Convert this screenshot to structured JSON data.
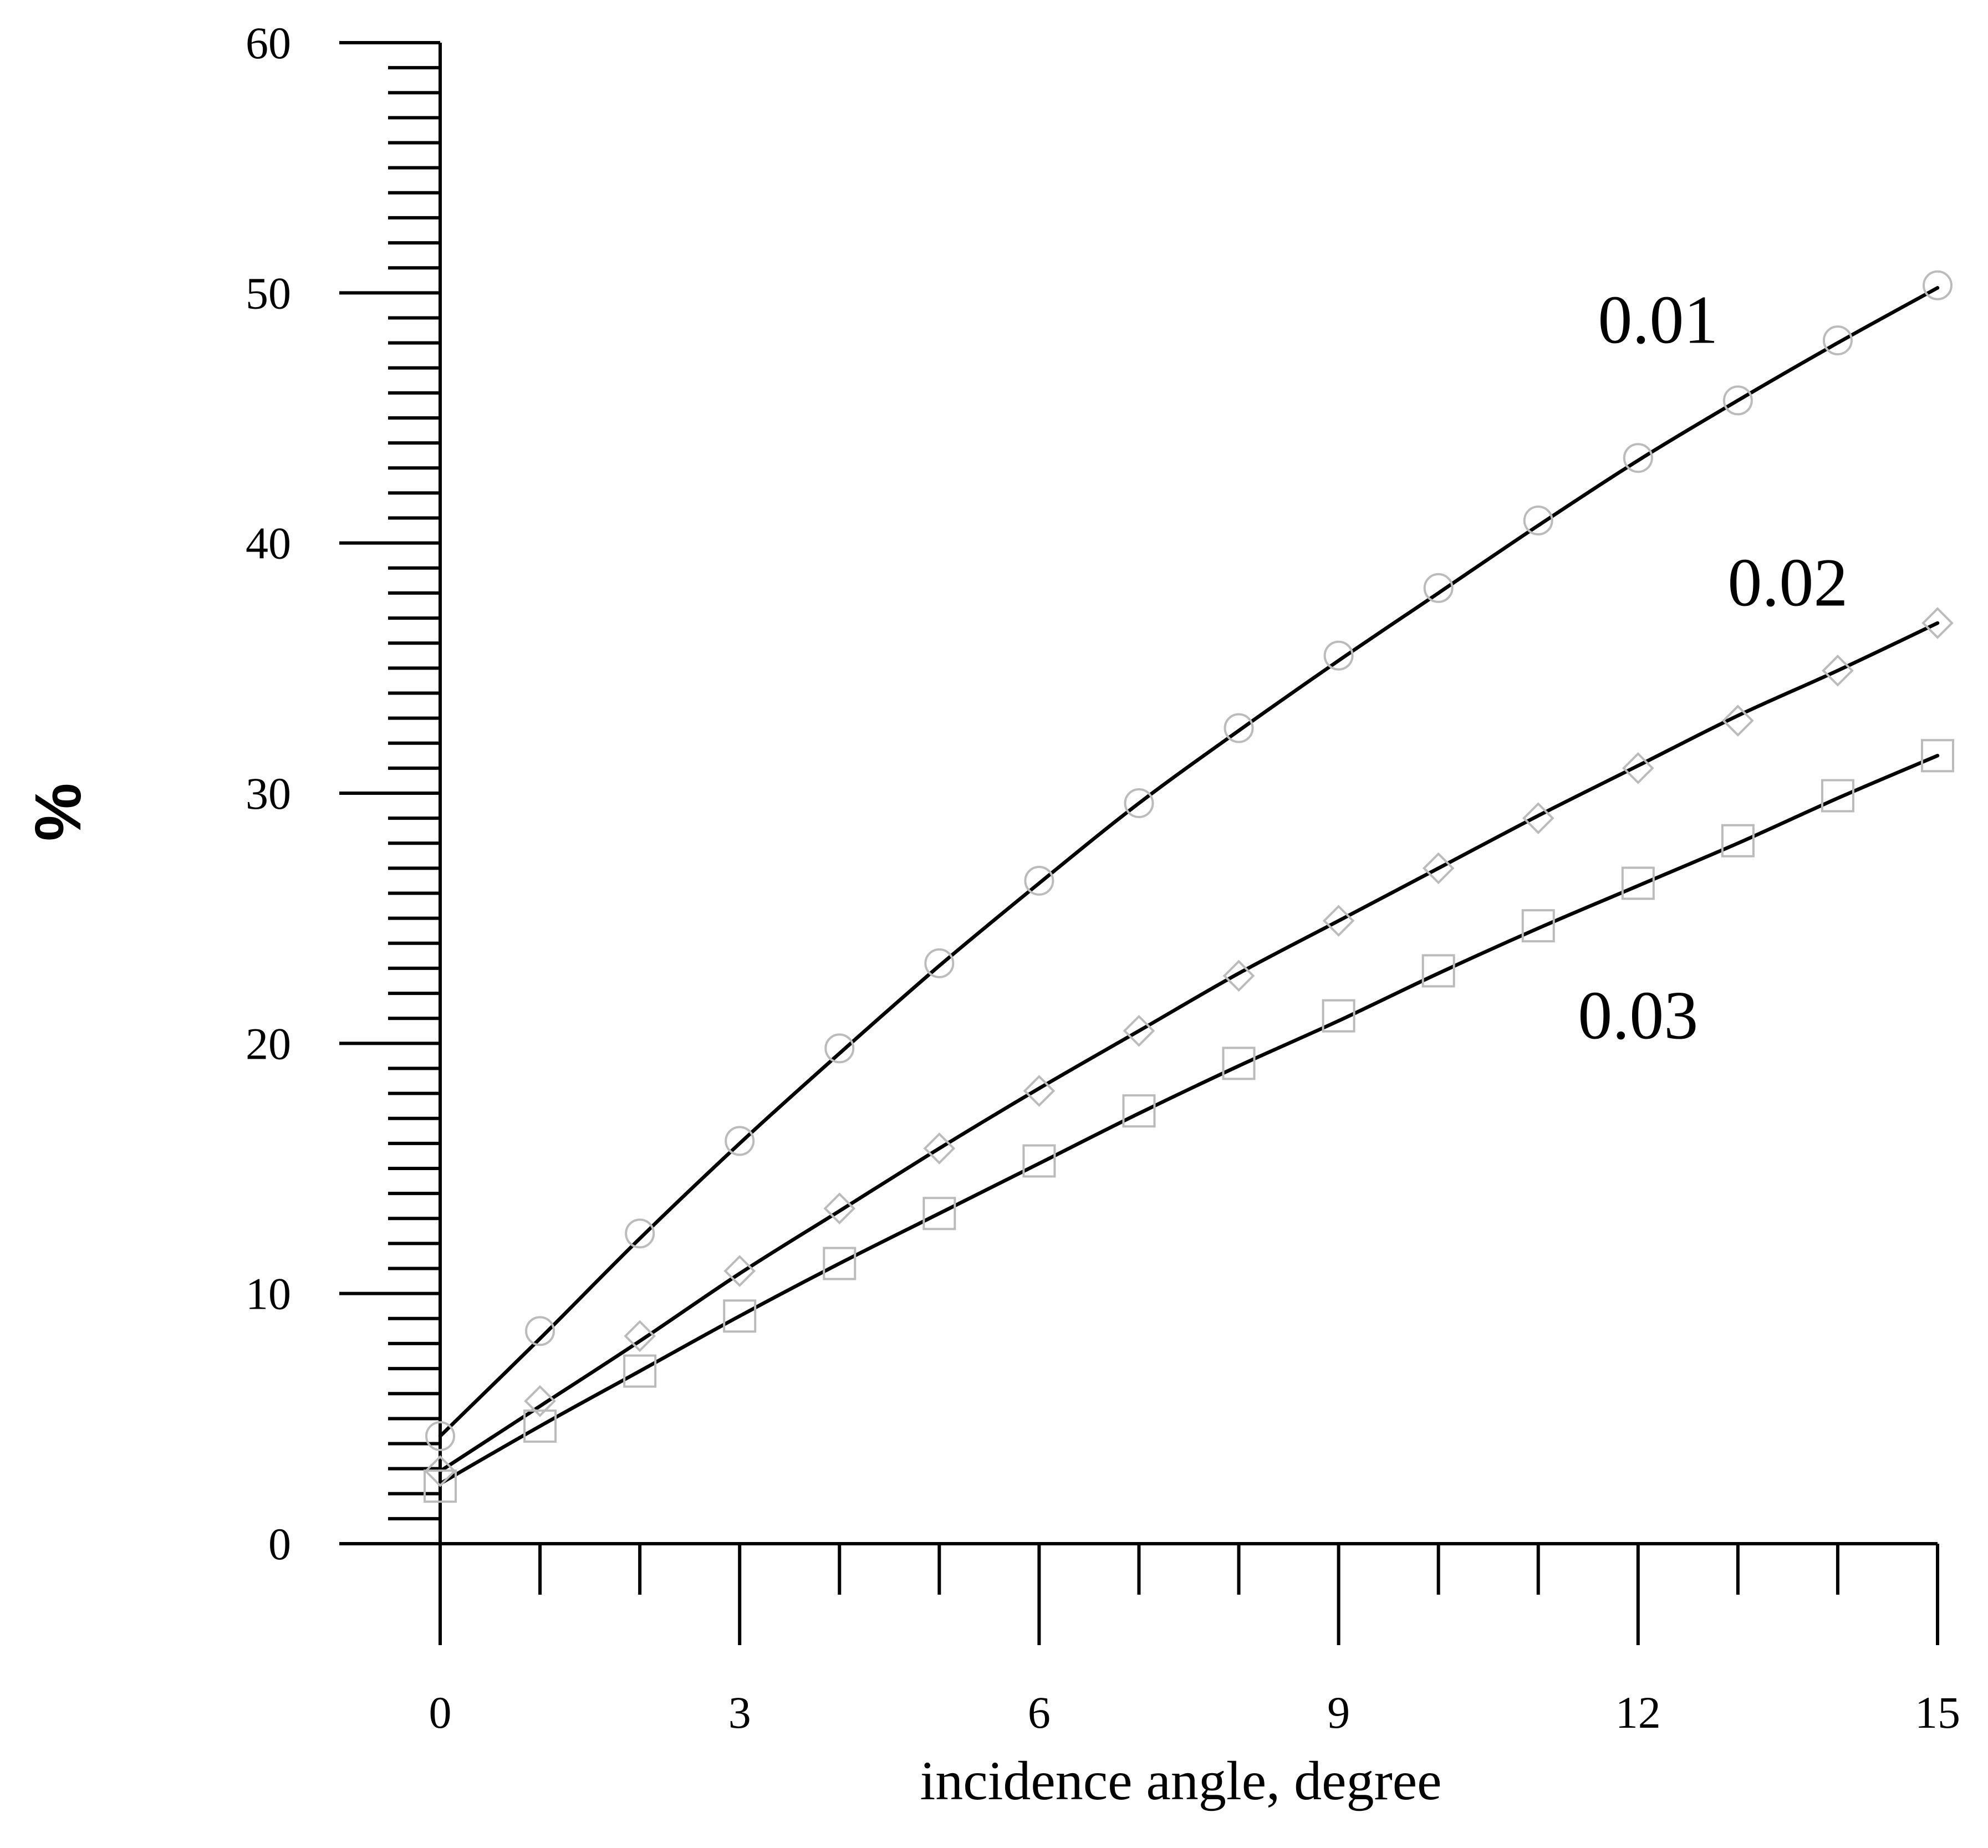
{
  "chart_data": {
    "type": "line",
    "title": "",
    "xlabel": "incidence angle, degree",
    "ylabel": "%",
    "xlim": [
      0,
      15
    ],
    "ylim": [
      0,
      60
    ],
    "x_ticks": [
      0,
      3,
      6,
      9,
      12,
      15
    ],
    "x_tick_labels": [
      "0",
      "3",
      "6",
      "9",
      "12",
      "15"
    ],
    "x_minor_step": 1,
    "y_ticks": [
      0,
      10,
      20,
      30,
      40,
      50,
      60
    ],
    "y_tick_labels": [
      "0",
      "10",
      "20",
      "30",
      "40",
      "50",
      "60"
    ],
    "y_minor_step": 1,
    "grid": false,
    "legend": "none (series labelled directly on the curves)",
    "x": [
      0,
      1,
      2,
      3,
      4,
      5,
      6,
      7,
      8,
      9,
      10,
      11,
      12,
      13,
      14,
      15
    ],
    "series": [
      {
        "name": "0.01",
        "marker": "circle",
        "line_color": "#000000",
        "marker_color": "#bbbbbb",
        "curve": [
          4.3,
          8.2,
          12.2,
          16.0,
          19.6,
          23.1,
          26.4,
          29.6,
          32.5,
          35.3,
          38.0,
          40.7,
          43.3,
          45.7,
          48.0,
          50.2
        ],
        "markers": [
          4.3,
          8.5,
          12.4,
          16.1,
          19.8,
          23.2,
          26.5,
          29.6,
          32.6,
          35.5,
          38.2,
          40.9,
          43.4,
          45.7,
          48.1,
          50.3
        ]
      },
      {
        "name": "0.02",
        "marker": "diamond",
        "line_color": "#000000",
        "marker_color": "#bbbbbb",
        "curve": [
          2.9,
          5.5,
          8.1,
          10.8,
          13.3,
          15.8,
          18.2,
          20.5,
          22.8,
          24.9,
          27.0,
          29.1,
          31.1,
          33.1,
          34.9,
          36.8
        ],
        "markers": [
          2.9,
          5.7,
          8.3,
          10.9,
          13.4,
          15.8,
          18.1,
          20.5,
          22.7,
          24.9,
          27.0,
          29.0,
          31.0,
          32.9,
          34.9,
          36.8
        ]
      },
      {
        "name": "0.03",
        "marker": "square",
        "line_color": "#000000",
        "marker_color": "#bbbbbb",
        "curve": [
          2.4,
          4.7,
          6.9,
          9.1,
          11.2,
          13.2,
          15.2,
          17.2,
          19.1,
          20.9,
          22.8,
          24.6,
          26.3,
          28.0,
          29.8,
          31.5
        ],
        "markers": [
          2.3,
          4.7,
          6.9,
          9.1,
          11.2,
          13.2,
          15.3,
          17.3,
          19.2,
          21.1,
          22.9,
          24.7,
          26.4,
          28.1,
          29.9,
          31.5
        ]
      }
    ],
    "annotations": [
      {
        "series": "0.01",
        "text": "0.01",
        "x": 12.2,
        "y": 48.0
      },
      {
        "series": "0.02",
        "text": "0.02",
        "x": 13.5,
        "y": 37.5
      },
      {
        "series": "0.03",
        "text": "0.03",
        "x": 12.0,
        "y": 20.2
      }
    ]
  }
}
